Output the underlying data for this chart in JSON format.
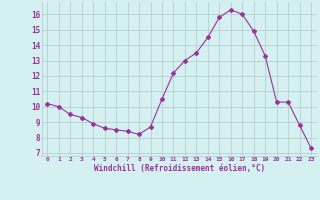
{
  "x": [
    0,
    1,
    2,
    3,
    4,
    5,
    6,
    7,
    8,
    9,
    10,
    11,
    12,
    13,
    14,
    15,
    16,
    17,
    18,
    19,
    20,
    21,
    22,
    23
  ],
  "y": [
    10.2,
    10.0,
    9.5,
    9.3,
    8.9,
    8.6,
    8.5,
    8.4,
    8.2,
    8.7,
    10.5,
    12.2,
    13.0,
    13.5,
    14.5,
    15.8,
    16.3,
    16.0,
    14.9,
    13.3,
    10.3,
    10.3,
    8.8,
    7.3
  ],
  "line_color": "#993399",
  "marker": "D",
  "marker_size": 2,
  "bg_color": "#d5f0f0",
  "grid_color": "#b0c8c8",
  "xlabel": "Windchill (Refroidissement éolien,°C)",
  "xlabel_color": "#993399",
  "tick_color": "#993399",
  "yticks": [
    7,
    8,
    9,
    10,
    11,
    12,
    13,
    14,
    15,
    16
  ],
  "ylim": [
    6.8,
    16.8
  ],
  "xlim": [
    -0.5,
    23.5
  ],
  "xtick_labels": [
    "0",
    "1",
    "2",
    "3",
    "4",
    "5",
    "6",
    "7",
    "8",
    "9",
    "10",
    "11",
    "12",
    "13",
    "14",
    "15",
    "16",
    "17",
    "18",
    "19",
    "20",
    "21",
    "22",
    "23"
  ]
}
